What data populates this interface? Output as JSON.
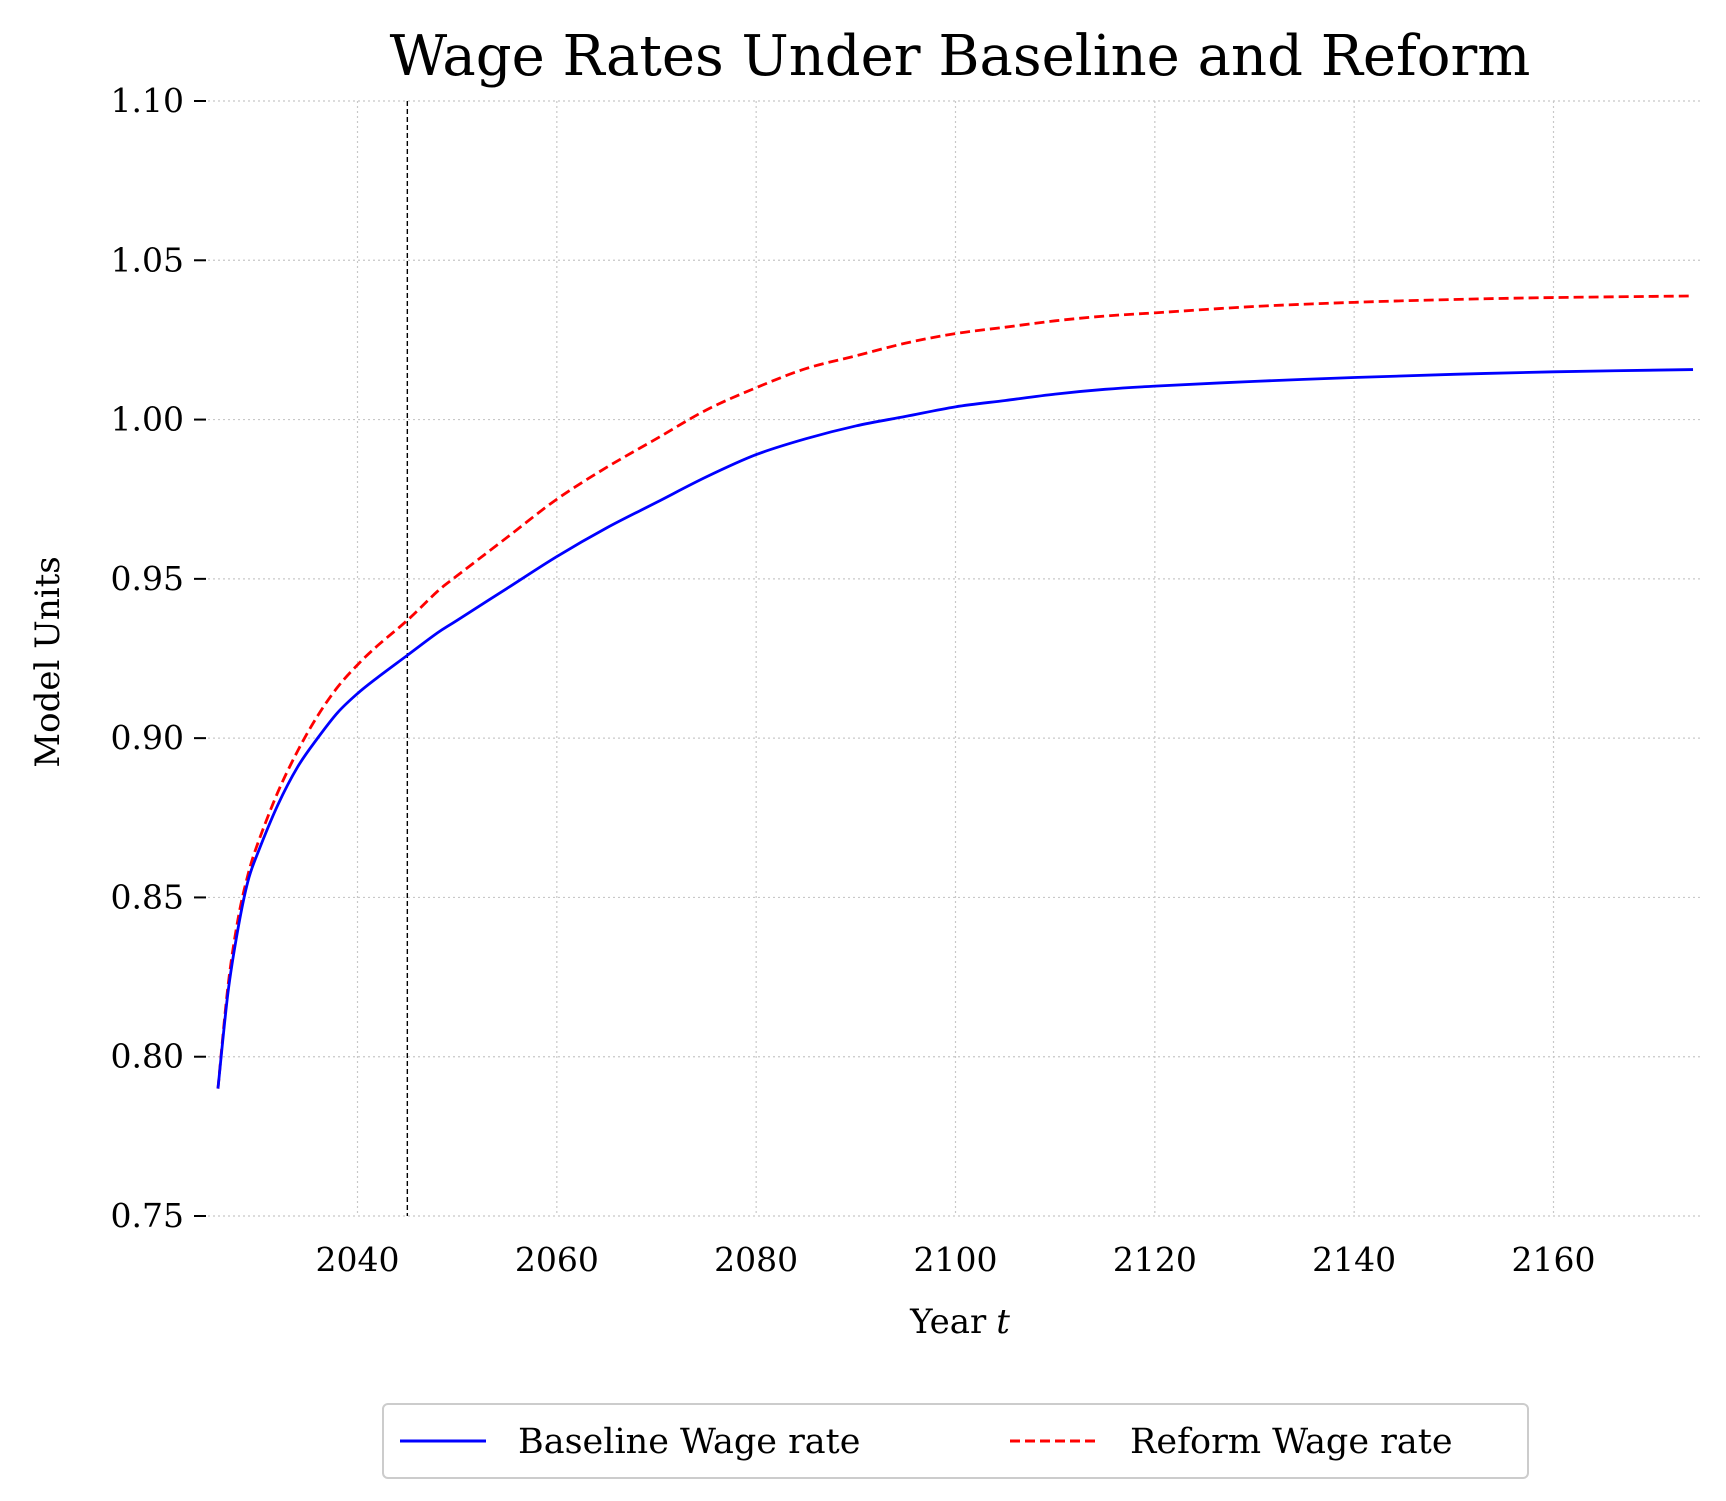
{
  "chart_data": {
    "type": "line",
    "title": "Wage Rates Under Baseline and Reform",
    "xlabel": "Year t",
    "xlabel_main": "Year",
    "xlabel_var": "t",
    "ylabel": "Model Units",
    "xlim": [
      2025,
      2175
    ],
    "ylim": [
      0.75,
      1.1
    ],
    "xticks": [
      2040,
      2060,
      2080,
      2100,
      2120,
      2140,
      2160
    ],
    "yticks": [
      0.75,
      0.8,
      0.85,
      0.9,
      0.95,
      1.0,
      1.05,
      1.1
    ],
    "ytick_labels": [
      "0.75",
      "0.80",
      "0.85",
      "0.90",
      "0.95",
      "1.00",
      "1.05",
      "1.10"
    ],
    "grid": true,
    "legend_position": "bottom-center",
    "vline": {
      "x": 2045,
      "color": "#000000",
      "style": "dashed"
    },
    "series": [
      {
        "name": "Baseline Wage rate",
        "color": "#0000ff",
        "style": "solid",
        "x": [
          2026,
          2027,
          2028,
          2029,
          2030,
          2032,
          2034,
          2036,
          2038,
          2040,
          2042,
          2045,
          2048,
          2050,
          2055,
          2060,
          2065,
          2070,
          2075,
          2080,
          2085,
          2090,
          2095,
          2100,
          2105,
          2110,
          2115,
          2120,
          2130,
          2140,
          2150,
          2160,
          2174
        ],
        "y": [
          0.79,
          0.82,
          0.84,
          0.855,
          0.864,
          0.879,
          0.891,
          0.9,
          0.908,
          0.914,
          0.919,
          0.926,
          0.933,
          0.937,
          0.947,
          0.957,
          0.966,
          0.974,
          0.982,
          0.989,
          0.994,
          0.998,
          1.001,
          1.004,
          1.006,
          1.008,
          1.0095,
          1.0105,
          1.012,
          1.0132,
          1.0142,
          1.015,
          1.0157
        ]
      },
      {
        "name": "Reform Wage rate",
        "color": "#ff0000",
        "style": "dashed",
        "x": [
          2026,
          2027,
          2028,
          2029,
          2030,
          2032,
          2034,
          2036,
          2038,
          2040,
          2042,
          2045,
          2048,
          2050,
          2055,
          2060,
          2065,
          2070,
          2075,
          2080,
          2085,
          2090,
          2095,
          2100,
          2105,
          2110,
          2115,
          2120,
          2130,
          2140,
          2150,
          2160,
          2174
        ],
        "y": [
          0.79,
          0.822,
          0.843,
          0.857,
          0.867,
          0.883,
          0.896,
          0.907,
          0.916,
          0.923,
          0.929,
          0.937,
          0.946,
          0.951,
          0.963,
          0.975,
          0.985,
          0.994,
          1.003,
          1.01,
          1.016,
          1.02,
          1.024,
          1.027,
          1.029,
          1.031,
          1.0325,
          1.0335,
          1.0355,
          1.0368,
          1.0377,
          1.0383,
          1.0388
        ]
      }
    ]
  }
}
